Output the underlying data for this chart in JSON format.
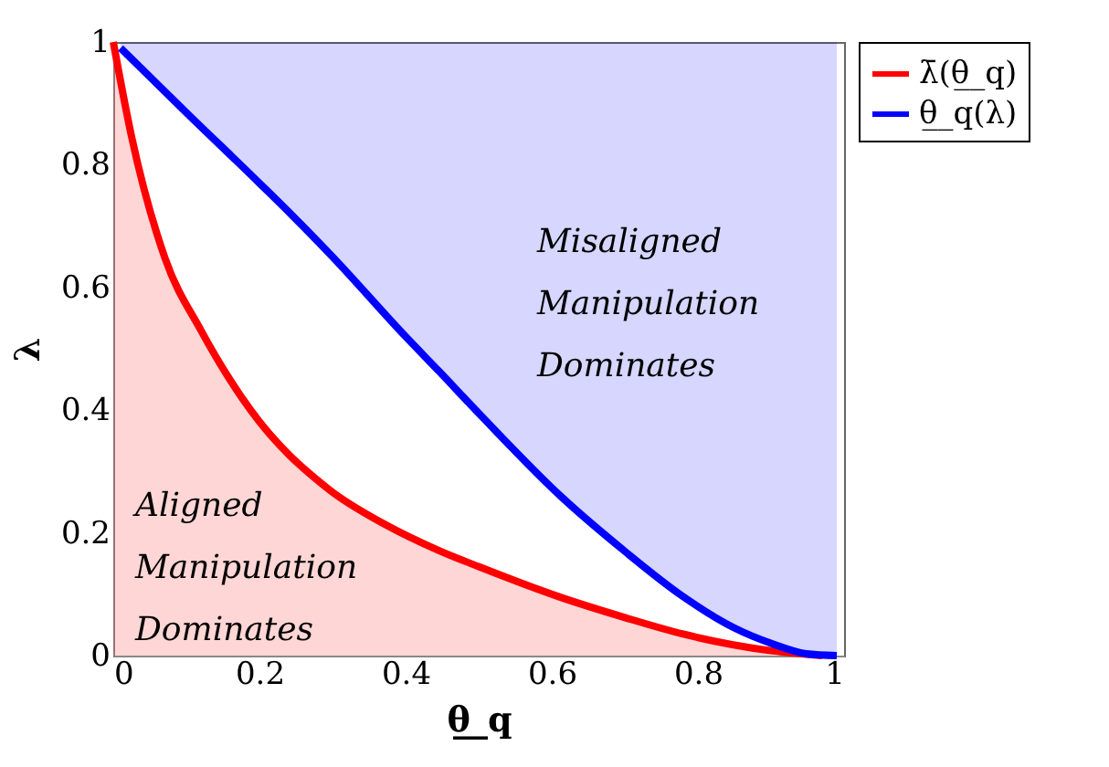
{
  "chart_data": {
    "type": "line",
    "xlabel": "θ̲_q",
    "ylabel": "λ",
    "xlim": [
      0,
      1
    ],
    "ylim": [
      0,
      1
    ],
    "xticks": [
      0,
      0.2,
      0.4,
      0.6,
      0.8,
      1
    ],
    "yticks": [
      0,
      0.2,
      0.4,
      0.6,
      0.8,
      1
    ],
    "grid": false,
    "legend": "right",
    "line_style": "solid",
    "marker": "none",
    "annotations": [
      "Aligned\nManipulation\nDominates",
      "Misaligned\nManipulation\nDominates"
    ],
    "series": [
      {
        "name": "λ̄(θ̲_q)",
        "color": "#ff0000",
        "x": [
          0,
          0.025,
          0.071,
          0.12,
          0.188,
          0.296,
          0.37,
          0.446,
          0.5,
          0.612,
          0.7,
          0.78,
          0.9,
          0.97
        ],
        "values": [
          1,
          0.846,
          0.647,
          0.53,
          0.4,
          0.27,
          0.215,
          0.171,
          0.145,
          0.095,
          0.062,
          0.035,
          0.008,
          0
        ],
        "lower": [
          0,
          0,
          0,
          0,
          0,
          0,
          0,
          0,
          0,
          0,
          0,
          0,
          0,
          0
        ],
        "upper": [
          1,
          0.846,
          0.647,
          0.53,
          0.4,
          0.27,
          0.215,
          0.171,
          0.145,
          0.095,
          0.062,
          0.035,
          0.008,
          0
        ]
      },
      {
        "name": "θ̲_q(λ)",
        "color": "#0000ff",
        "x": [
          0.01,
          0.1,
          0.2,
          0.246,
          0.3,
          0.4,
          0.446,
          0.5,
          0.612,
          0.7,
          0.78,
          0.85,
          0.9,
          0.948,
          0.99
        ],
        "values": [
          0.99,
          0.885,
          0.77,
          0.716,
          0.65,
          0.52,
          0.463,
          0.395,
          0.26,
          0.17,
          0.096,
          0.045,
          0.02,
          0.003,
          0
        ],
        "lower": [
          0.99,
          0.885,
          0.77,
          0.716,
          0.65,
          0.52,
          0.463,
          0.395,
          0.26,
          0.17,
          0.096,
          0.045,
          0.02,
          0.003,
          0
        ],
        "upper": [
          1,
          1,
          1,
          1,
          1,
          1,
          1,
          1,
          1,
          1,
          1,
          1,
          1,
          1,
          1
        ]
      }
    ]
  }
}
